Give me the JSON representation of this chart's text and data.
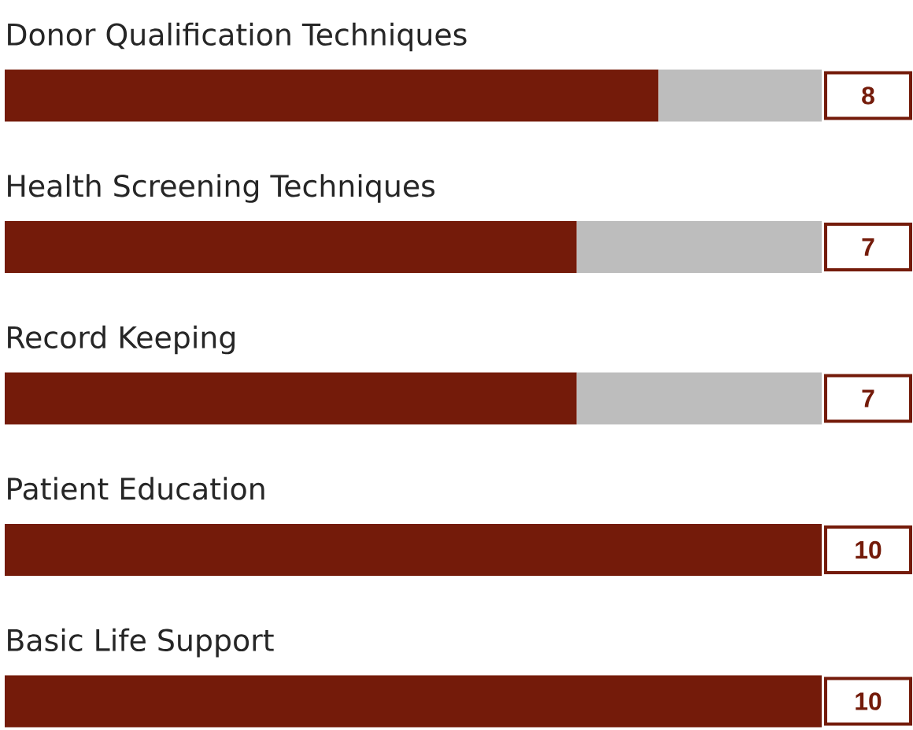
{
  "chart_data": {
    "type": "bar",
    "orientation": "horizontal",
    "stacked": true,
    "tick_labels": false,
    "categories": [
      "Donor Qualification Techniques",
      "Health Screening Techniques",
      "Record Keeping",
      "Patient Education",
      "Basic Life Support"
    ],
    "xlim": [
      0,
      10
    ],
    "series": [
      {
        "color": "#741b0a",
        "values": [
          8,
          7,
          7,
          10,
          10
        ],
        "value_labels": [
          "8",
          "7",
          "7",
          "10",
          "10"
        ]
      },
      {
        "color": "#bdbdbd",
        "values": [
          2,
          3,
          3,
          0,
          0
        ]
      }
    ]
  }
}
